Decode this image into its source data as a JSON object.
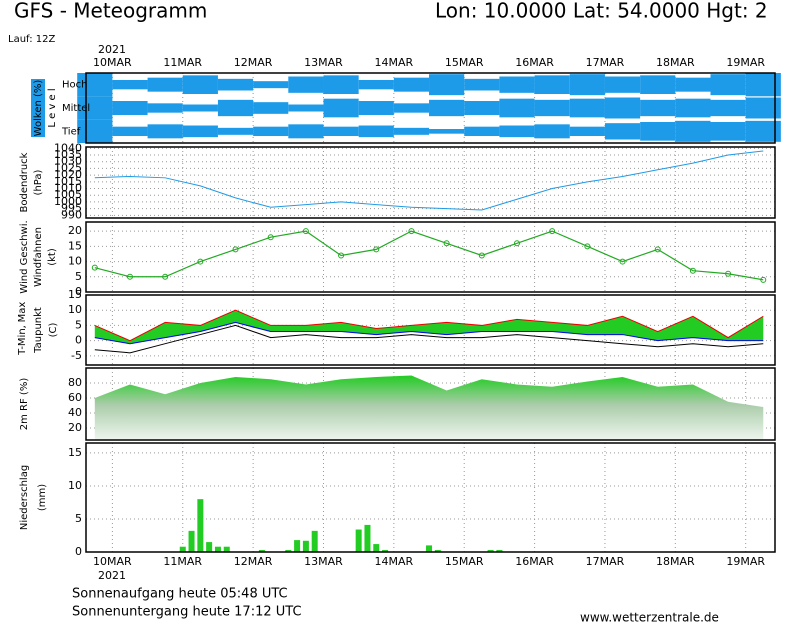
{
  "header": {
    "title": "GFS - Meteogramm",
    "location": "Lon: 10.0000 Lat: 54.0000 Hgt: 2",
    "run": "Lauf: 12Z",
    "year": "2021"
  },
  "time_axis": {
    "xlim": [
      -9,
      226
    ],
    "xticks": [
      {
        "value": 0,
        "label": "10MAR"
      },
      {
        "value": 24,
        "label": "11MAR"
      },
      {
        "value": 48,
        "label": "12MAR"
      },
      {
        "value": 72,
        "label": "13MAR"
      },
      {
        "value": 96,
        "label": "14MAR"
      },
      {
        "value": 120,
        "label": "15MAR"
      },
      {
        "value": 144,
        "label": "16MAR"
      },
      {
        "value": 168,
        "label": "17MAR"
      },
      {
        "value": 192,
        "label": "18MAR"
      },
      {
        "value": 216,
        "label": "19MAR"
      }
    ]
  },
  "chart_data": [
    {
      "type": "cloud",
      "title": "Wolken (%)",
      "ylabel": "L e v e l",
      "x": [
        -6,
        6,
        18,
        30,
        42,
        54,
        66,
        78,
        90,
        102,
        114,
        126,
        138,
        150,
        162,
        174,
        186,
        198,
        210,
        222
      ],
      "ylim": [
        0,
        100
      ],
      "series": [
        {
          "name": "Hoch",
          "color": "#1e9be8",
          "values": [
            100,
            40,
            60,
            80,
            50,
            30,
            70,
            80,
            40,
            60,
            90,
            50,
            70,
            80,
            90,
            70,
            80,
            60,
            90,
            100
          ]
        },
        {
          "name": "Mittel",
          "color": "#1e9be8",
          "values": [
            100,
            60,
            40,
            30,
            70,
            50,
            30,
            80,
            60,
            40,
            70,
            60,
            80,
            70,
            80,
            90,
            70,
            80,
            70,
            90
          ]
        },
        {
          "name": "Tief",
          "color": "#1e9be8",
          "values": [
            100,
            40,
            60,
            50,
            30,
            40,
            60,
            40,
            50,
            30,
            20,
            40,
            50,
            60,
            40,
            70,
            80,
            90,
            80,
            90
          ]
        }
      ]
    },
    {
      "type": "line",
      "ylabel": [
        "Bodendruck",
        "(hPa)"
      ],
      "x": [
        -6,
        6,
        18,
        30,
        42,
        54,
        66,
        78,
        90,
        102,
        114,
        126,
        138,
        150,
        162,
        174,
        186,
        198,
        210,
        222
      ],
      "ylim": [
        988,
        1041
      ],
      "yticks": [
        990,
        995,
        1000,
        1005,
        1010,
        1015,
        1020,
        1025,
        1030,
        1035,
        1040
      ],
      "series": [
        {
          "name": "Bodendruck",
          "color": "#1e9be8",
          "values": [
            1018,
            1019,
            1018,
            1012,
            1003,
            996,
            998,
            1000,
            998,
            996,
            995,
            994,
            1002,
            1010,
            1015,
            1019,
            1024,
            1029,
            1035,
            1038
          ]
        }
      ]
    },
    {
      "type": "line",
      "ylabel": [
        "Windfahnen",
        "(kt)"
      ],
      "x": [
        -6,
        6,
        18,
        30,
        42,
        54,
        66,
        78,
        90,
        102,
        114,
        126,
        138,
        150,
        162,
        174,
        186,
        198,
        210,
        222
      ],
      "ylim": [
        0,
        23
      ],
      "yticks": [
        0,
        5,
        10,
        15,
        20
      ],
      "series": [
        {
          "name": "Wind Geschwi.",
          "color": "#22aa22",
          "values": [
            8,
            5,
            5,
            10,
            14,
            18,
            20,
            12,
            14,
            20,
            16,
            12,
            16,
            20,
            15,
            10,
            14,
            7,
            6,
            4
          ]
        }
      ]
    },
    {
      "type": "temperature",
      "ylabel": "(C)",
      "x": [
        -6,
        6,
        18,
        30,
        42,
        54,
        66,
        78,
        90,
        102,
        114,
        126,
        138,
        150,
        162,
        174,
        186,
        198,
        210,
        222
      ],
      "ylim": [
        -8,
        15
      ],
      "yticks": [
        -5,
        0,
        5,
        10,
        15
      ],
      "series": [
        {
          "name": "T-Min,",
          "color": "#0000ee",
          "values": [
            1,
            -1,
            1,
            3,
            6,
            3,
            3,
            3,
            2,
            3,
            2,
            3,
            3,
            3,
            2,
            2,
            0,
            1,
            0,
            0
          ]
        },
        {
          "name": "Max",
          "color": "#ee0000",
          "values": [
            5,
            0,
            6,
            5,
            10,
            5,
            5,
            6,
            4,
            5,
            6,
            5,
            7,
            6,
            5,
            8,
            3,
            8,
            1,
            8
          ]
        },
        {
          "name": "Taupunkt",
          "color": "#000000",
          "values": [
            -3,
            -4,
            -1,
            2,
            5,
            1,
            2,
            1,
            1,
            2,
            1,
            1,
            2,
            1,
            0,
            -1,
            -2,
            -1,
            -2,
            -1
          ]
        }
      ]
    },
    {
      "type": "area",
      "x": [
        -6,
        6,
        18,
        30,
        42,
        54,
        66,
        78,
        90,
        102,
        114,
        126,
        138,
        150,
        162,
        174,
        186,
        198,
        210,
        222
      ],
      "ylim": [
        4,
        100
      ],
      "yticks": [
        20,
        40,
        60,
        80
      ],
      "series": [
        {
          "name": "2m RF (%)",
          "color": "#22cc22",
          "values": [
            60,
            78,
            65,
            80,
            88,
            85,
            78,
            85,
            88,
            90,
            70,
            85,
            78,
            75,
            82,
            88,
            75,
            78,
            55,
            48
          ]
        }
      ]
    },
    {
      "type": "bar",
      "ylabel": [
        "Niederschlag",
        "(mm)"
      ],
      "x": [
        24,
        27,
        30,
        33,
        36,
        39,
        51,
        60,
        63,
        66,
        69,
        84,
        87,
        90,
        93,
        108,
        111,
        129,
        132
      ],
      "values": [
        0.8,
        3.2,
        8,
        1.5,
        0.8,
        0.8,
        0.3,
        0.3,
        1.8,
        1.7,
        3.2,
        3.4,
        4.1,
        1.2,
        0.3,
        1,
        0.3,
        0.3,
        0.3
      ],
      "color": "#22cc22",
      "ylim": [
        0,
        16.5
      ],
      "yticks": [
        0,
        5,
        10,
        15
      ]
    }
  ],
  "footer": {
    "sunrise": "Sonnenaufgang heute 05:48 UTC",
    "sunset": "Sonnenuntergang heute 17:12 UTC",
    "site": "www.wetterzentrale.de"
  }
}
